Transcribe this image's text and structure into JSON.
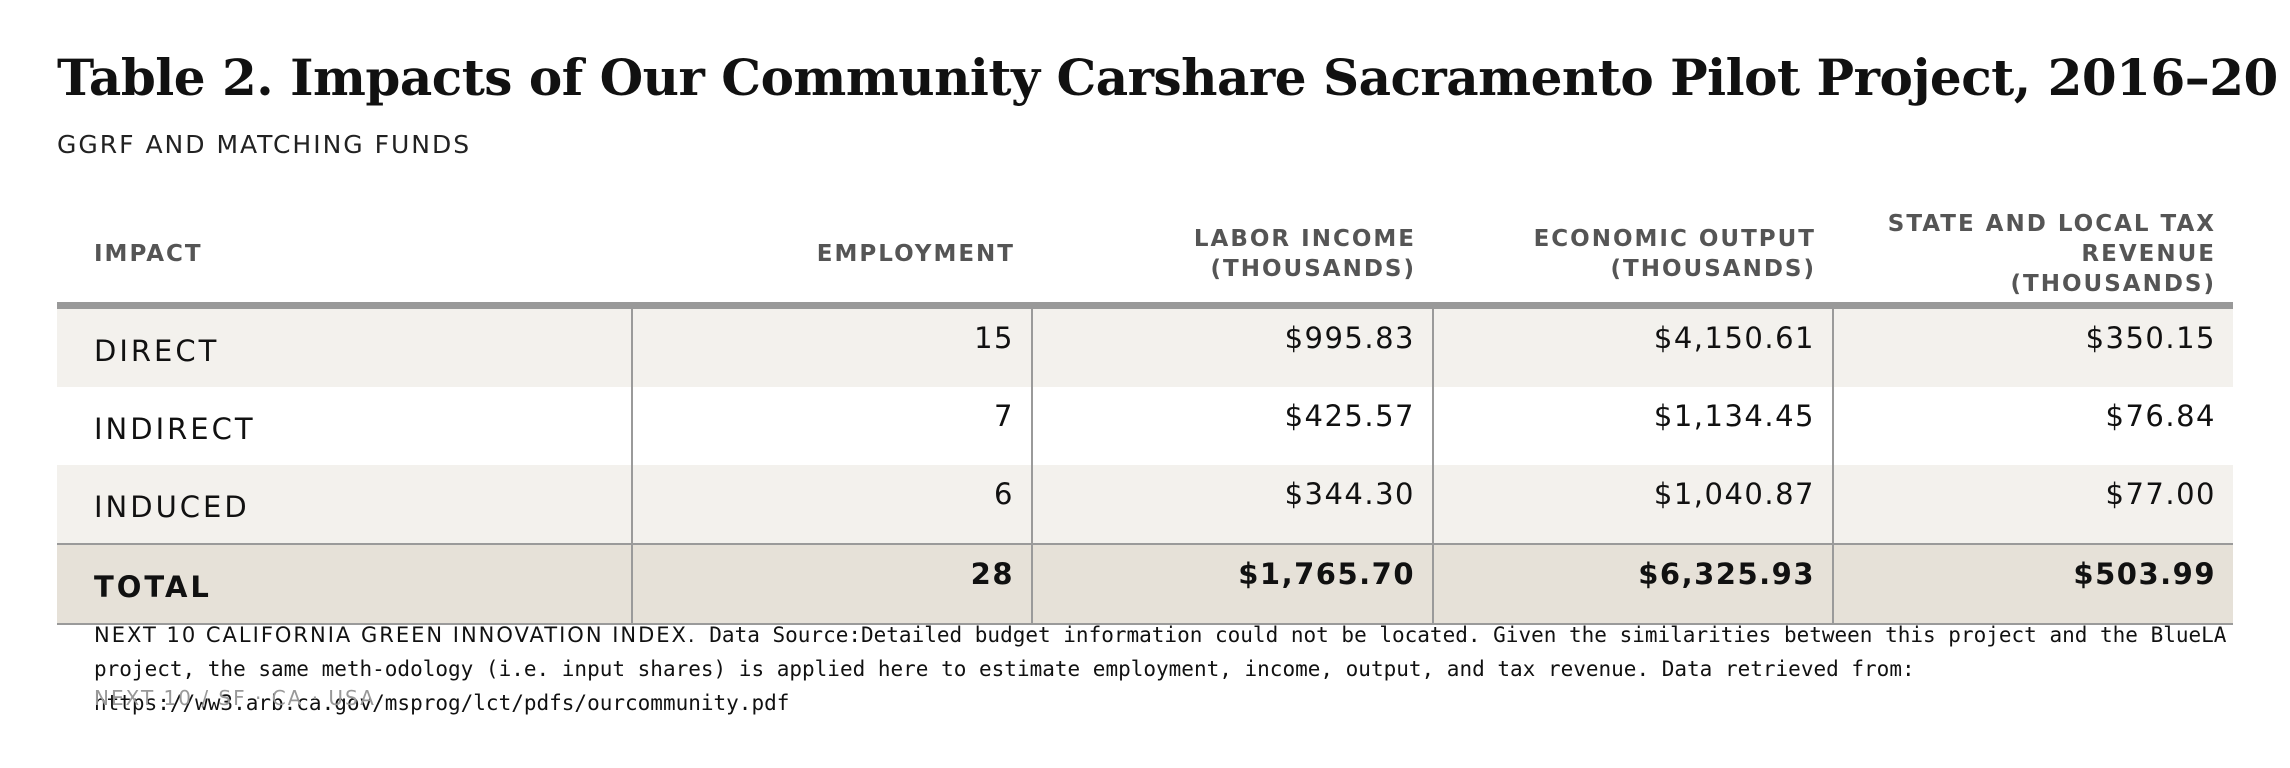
{
  "title": "Table 2. Impacts of Our Community Carshare Sacramento Pilot Project, 2016–20",
  "subtitle": "GGRF AND MATCHING FUNDS",
  "table": {
    "headers": {
      "impact": "IMPACT",
      "employment": "EMPLOYMENT",
      "labor_income_l1": "LABOR INCOME",
      "labor_income_l2": "(THOUSANDS)",
      "economic_output_l1": "ECONOMIC OUTPUT",
      "economic_output_l2": "(THOUSANDS)",
      "tax_l1": "STATE AND LOCAL TAX",
      "tax_l2": "REVENUE (THOUSANDS)"
    },
    "rows": [
      {
        "impact": "DIRECT",
        "employment": "15",
        "labor_income": "$995.83",
        "economic_output": "$4,150.61",
        "tax_revenue": "$350.15"
      },
      {
        "impact": "INDIRECT",
        "employment": "7",
        "labor_income": "$425.57",
        "economic_output": "$1,134.45",
        "tax_revenue": "$76.84"
      },
      {
        "impact": "INDUCED",
        "employment": "6",
        "labor_income": "$344.30",
        "economic_output": "$1,040.87",
        "tax_revenue": "$77.00"
      },
      {
        "impact": "TOTAL",
        "employment": "28",
        "labor_income": "$1,765.70",
        "economic_output": "$6,325.93",
        "tax_revenue": "$503.99"
      }
    ]
  },
  "note": {
    "lead": "NEXT 10 CALIFORNIA GREEN INNOVATION INDEX.",
    "text": "Data Source:Detailed budget information could not be located. Given the similarities between this project and the BlueLA project, the same meth-odology (i.e. input shares) is applied here to estimate employment, income, output, and tax revenue. Data retrieved from: https://ww3.arb.ca.gov/msprog/lct/pdfs/ourcommunity.pdf"
  },
  "footer": "NEXT 10 / SF · CA · USA"
}
